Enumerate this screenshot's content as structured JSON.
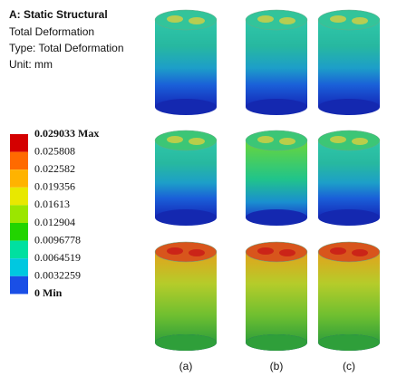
{
  "header": {
    "title": "A: Static Structural",
    "lines": [
      "Total Deformation",
      "Type: Total Deformation",
      "Unit: mm"
    ]
  },
  "legend": {
    "labels": [
      "0.029033 Max",
      "0.025808",
      "0.022582",
      "0.019356",
      "0.01613",
      "0.012904",
      "0.0096778",
      "0.0064519",
      "0.0032259",
      "0 Min"
    ],
    "colors": [
      "#d40000",
      "#ff6a00",
      "#ffb300",
      "#e8e800",
      "#9be600",
      "#22d400",
      "#00e0a0",
      "#00c8e0",
      "#1a4fe6"
    ]
  },
  "panels": [
    "(a)",
    "(b)",
    "(c)"
  ]
}
